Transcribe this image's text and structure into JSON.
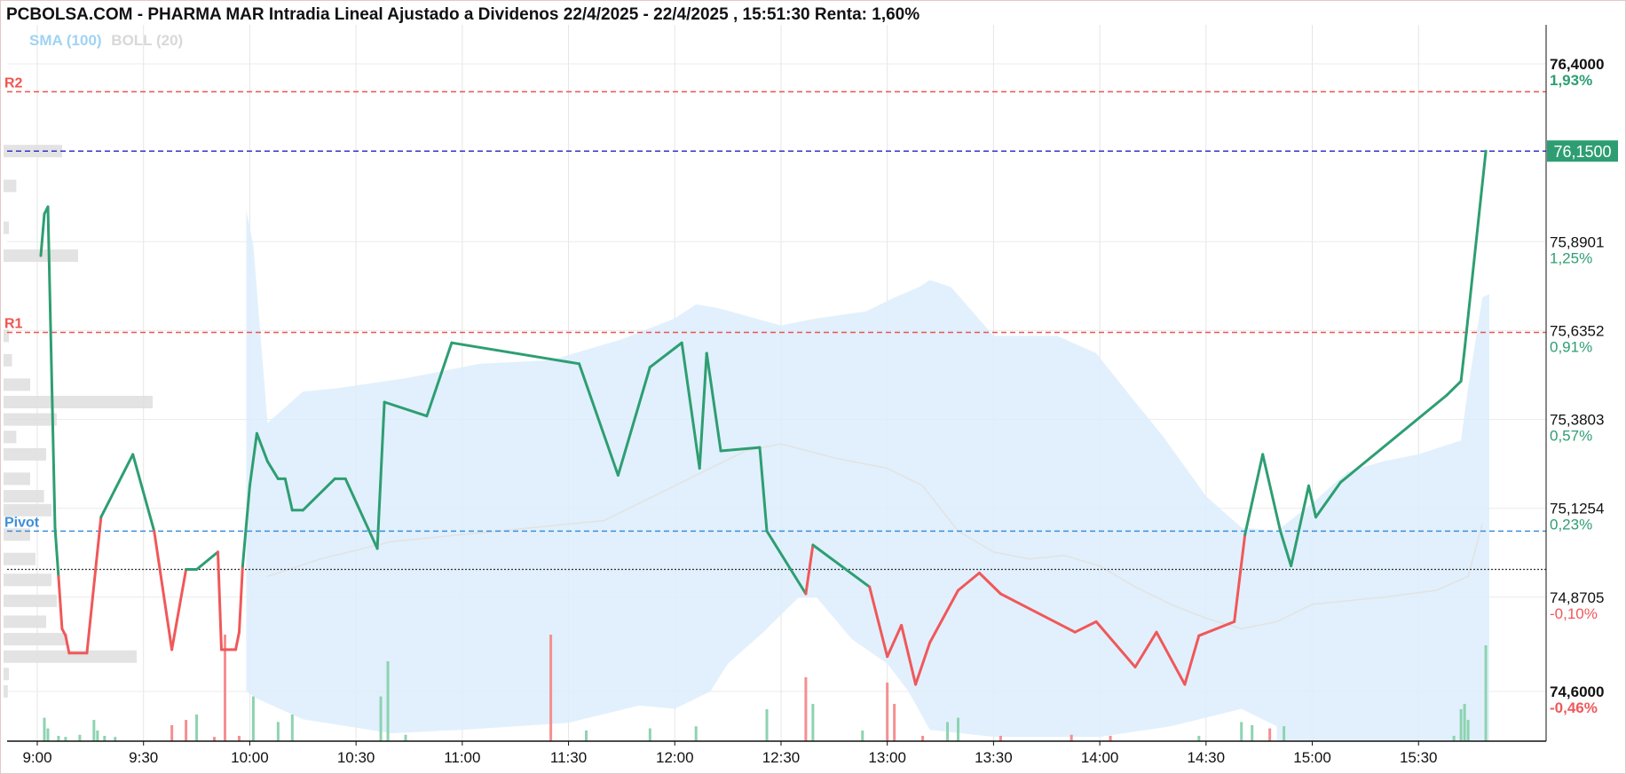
{
  "title": "PCBOLSA.COM - PHARMA MAR Intradia Lineal Ajustado a Dividenos 22/4/2025 - 22/4/2025 , 15:51:30 Renta: 1,60%",
  "indicators": {
    "sma": "SMA (100)",
    "boll": "BOLL (20)"
  },
  "colors": {
    "up": "#2e9e72",
    "down": "#f0585a",
    "band": "#dcedfb",
    "resistance": "#ef5350",
    "pivot": "#3d8fd8",
    "current": "#3434c8",
    "prev_close": "#333333",
    "last_price_bg": "#2e9e72"
  },
  "chart_data": {
    "type": "line",
    "title": "PCBOLSA.COM - PHARMA MAR Intradia Lineal Ajustado a Dividenos 22/4/2025 - 22/4/2025 , 15:51:30 Renta: 1,60%",
    "x_ticks": [
      "9:00",
      "9:30",
      "10:00",
      "10:30",
      "11:00",
      "11:30",
      "12:00",
      "12:30",
      "13:00",
      "13:30",
      "14:00",
      "14:30",
      "15:00",
      "15:30"
    ],
    "y_ticks": [
      {
        "price": "76,4000",
        "pct": "1,93%",
        "pct_color": "#2e9e72"
      },
      {
        "price": "75,8901",
        "pct": "1,25%",
        "pct_color": "#2e9e72"
      },
      {
        "price": "75,6352",
        "pct": "0,91%",
        "pct_color": "#2e9e72"
      },
      {
        "price": "75,3803",
        "pct": "0,57%",
        "pct_color": "#2e9e72"
      },
      {
        "price": "75,1254",
        "pct": "0,23%",
        "pct_color": "#2e9e72"
      },
      {
        "price": "74,8705",
        "pct": "-0,10%",
        "pct_color": "#f0585a"
      },
      {
        "price": "74,6000",
        "pct": "-0,46%",
        "pct_color": "#f0585a"
      }
    ],
    "ylim": [
      74.6,
      76.4
    ],
    "reference_close": 74.95,
    "last_price": "76,1500",
    "levels": [
      {
        "name": "R2",
        "value": 76.32,
        "color": "#ef5350"
      },
      {
        "name": "R1",
        "value": 75.63,
        "color": "#ef5350"
      },
      {
        "name": "Pivot",
        "value": 75.06,
        "color": "#3d8fd8"
      }
    ],
    "current_line": 76.15,
    "price_series": [
      [
        "9:01",
        75.85
      ],
      [
        "9:02",
        75.97
      ],
      [
        "9:03",
        75.99
      ],
      [
        "9:05",
        75.07
      ],
      [
        "9:06",
        74.93
      ],
      [
        "9:07",
        74.78
      ],
      [
        "9:08",
        74.76
      ],
      [
        "9:09",
        74.71
      ],
      [
        "9:14",
        74.71
      ],
      [
        "9:18",
        75.1
      ],
      [
        "9:27",
        75.28
      ],
      [
        "9:33",
        75.06
      ],
      [
        "9:38",
        74.72
      ],
      [
        "9:42",
        74.95
      ],
      [
        "9:45",
        74.95
      ],
      [
        "9:51",
        75.0
      ],
      [
        "9:52",
        74.72
      ],
      [
        "9:56",
        74.72
      ],
      [
        "9:57",
        74.77
      ],
      [
        "9:58",
        74.96
      ],
      [
        "10:00",
        75.19
      ],
      [
        "10:02",
        75.34
      ],
      [
        "10:05",
        75.26
      ],
      [
        "10:08",
        75.21
      ],
      [
        "10:10",
        75.21
      ],
      [
        "10:12",
        75.12
      ],
      [
        "10:15",
        75.12
      ],
      [
        "10:24",
        75.21
      ],
      [
        "10:27",
        75.21
      ],
      [
        "10:36",
        75.01
      ],
      [
        "10:38",
        75.43
      ],
      [
        "10:50",
        75.39
      ],
      [
        "10:57",
        75.6
      ],
      [
        "11:33",
        75.54
      ],
      [
        "11:44",
        75.22
      ],
      [
        "11:53",
        75.53
      ],
      [
        "12:02",
        75.6
      ],
      [
        "12:07",
        75.24
      ],
      [
        "12:09",
        75.57
      ],
      [
        "12:13",
        75.29
      ],
      [
        "12:24",
        75.3
      ],
      [
        "12:26",
        75.06
      ],
      [
        "12:37",
        74.88
      ],
      [
        "12:39",
        75.02
      ],
      [
        "12:55",
        74.9
      ],
      [
        "13:00",
        74.7
      ],
      [
        "13:04",
        74.79
      ],
      [
        "13:08",
        74.62
      ],
      [
        "13:12",
        74.74
      ],
      [
        "13:20",
        74.89
      ],
      [
        "13:26",
        74.94
      ],
      [
        "13:32",
        74.88
      ],
      [
        "13:53",
        74.77
      ],
      [
        "13:59",
        74.8
      ],
      [
        "14:10",
        74.67
      ],
      [
        "14:16",
        74.77
      ],
      [
        "14:24",
        74.62
      ],
      [
        "14:28",
        74.76
      ],
      [
        "14:38",
        74.8
      ],
      [
        "14:41",
        75.05
      ],
      [
        "14:46",
        75.28
      ],
      [
        "14:51",
        75.06
      ],
      [
        "14:54",
        74.96
      ],
      [
        "14:59",
        75.19
      ],
      [
        "15:01",
        75.1
      ],
      [
        "15:08",
        75.2
      ],
      [
        "15:38",
        75.45
      ],
      [
        "15:42",
        75.49
      ],
      [
        "15:43",
        75.58
      ],
      [
        "15:49",
        76.15
      ]
    ],
    "boll_upper": [
      [
        "9:59",
        75.98
      ],
      [
        "10:01",
        75.88
      ],
      [
        "10:05",
        75.37
      ],
      [
        "10:15",
        75.46
      ],
      [
        "10:25",
        75.47
      ],
      [
        "10:45",
        75.5
      ],
      [
        "11:05",
        75.54
      ],
      [
        "11:25",
        75.55
      ],
      [
        "11:45",
        75.61
      ],
      [
        "12:00",
        75.67
      ],
      [
        "12:06",
        75.71
      ],
      [
        "12:12",
        75.7
      ],
      [
        "12:30",
        75.65
      ],
      [
        "12:40",
        75.67
      ],
      [
        "12:54",
        75.69
      ],
      [
        "13:02",
        75.73
      ],
      [
        "13:09",
        75.76
      ],
      [
        "13:12",
        75.78
      ],
      [
        "13:18",
        75.76
      ],
      [
        "13:24",
        75.69
      ],
      [
        "13:30",
        75.62
      ],
      [
        "13:48",
        75.62
      ],
      [
        "13:59",
        75.57
      ],
      [
        "14:10",
        75.43
      ],
      [
        "14:18",
        75.33
      ],
      [
        "14:30",
        75.16
      ],
      [
        "14:40",
        75.07
      ],
      [
        "14:50",
        75.06
      ],
      [
        "15:00",
        75.14
      ],
      [
        "15:10",
        75.23
      ],
      [
        "15:20",
        75.26
      ],
      [
        "15:30",
        75.28
      ],
      [
        "15:42",
        75.32
      ],
      [
        "15:44",
        75.47
      ],
      [
        "15:48",
        75.73
      ],
      [
        "15:50",
        75.74
      ]
    ],
    "boll_lower": [
      [
        "9:59",
        74.6
      ],
      [
        "10:02",
        74.58
      ],
      [
        "10:15",
        74.52
      ],
      [
        "10:40",
        74.48
      ],
      [
        "11:00",
        74.49
      ],
      [
        "11:30",
        74.51
      ],
      [
        "11:50",
        74.56
      ],
      [
        "12:00",
        74.55
      ],
      [
        "12:10",
        74.6
      ],
      [
        "12:15",
        74.68
      ],
      [
        "12:25",
        74.77
      ],
      [
        "12:35",
        74.87
      ],
      [
        "12:40",
        74.87
      ],
      [
        "12:50",
        74.75
      ],
      [
        "13:00",
        74.68
      ],
      [
        "13:06",
        74.6
      ],
      [
        "13:12",
        74.49
      ],
      [
        "13:30",
        74.47
      ],
      [
        "14:00",
        74.47
      ],
      [
        "14:20",
        74.5
      ],
      [
        "14:40",
        74.55
      ],
      [
        "14:50",
        74.5
      ]
    ],
    "sma_series": [
      [
        "10:05",
        74.93
      ],
      [
        "10:20",
        74.98
      ],
      [
        "10:40",
        75.03
      ],
      [
        "11:00",
        75.05
      ],
      [
        "11:20",
        75.07
      ],
      [
        "11:40",
        75.09
      ],
      [
        "11:50",
        75.14
      ],
      [
        "12:00",
        75.19
      ],
      [
        "12:10",
        75.24
      ],
      [
        "12:20",
        75.29
      ],
      [
        "12:30",
        75.31
      ],
      [
        "12:45",
        75.27
      ],
      [
        "13:00",
        75.24
      ],
      [
        "13:10",
        75.19
      ],
      [
        "13:20",
        75.06
      ],
      [
        "13:30",
        75.0
      ],
      [
        "13:40",
        74.98
      ],
      [
        "13:50",
        74.99
      ],
      [
        "14:00",
        74.96
      ],
      [
        "14:10",
        74.9
      ],
      [
        "14:20",
        74.85
      ],
      [
        "14:30",
        74.81
      ],
      [
        "14:40",
        74.78
      ],
      [
        "14:50",
        74.8
      ],
      [
        "15:00",
        74.85
      ],
      [
        "15:20",
        74.87
      ],
      [
        "15:35",
        74.89
      ],
      [
        "15:44",
        74.93
      ],
      [
        "15:48",
        75.08
      ]
    ],
    "volume_bars": [
      [
        "9:02",
        0.22,
        "up"
      ],
      [
        "9:03",
        0.12,
        "up"
      ],
      [
        "9:06",
        0.05,
        "up"
      ],
      [
        "9:08",
        0.04,
        "up"
      ],
      [
        "9:12",
        0.06,
        "up"
      ],
      [
        "9:16",
        0.2,
        "up"
      ],
      [
        "9:17",
        0.1,
        "up"
      ],
      [
        "9:19",
        0.05,
        "up"
      ],
      [
        "9:22",
        0.04,
        "up"
      ],
      [
        "9:38",
        0.15,
        "down"
      ],
      [
        "9:42",
        0.2,
        "down"
      ],
      [
        "9:45",
        0.25,
        "up"
      ],
      [
        "9:50",
        0.04,
        "down"
      ],
      [
        "9:53",
        1.0,
        "down"
      ],
      [
        "9:57",
        0.05,
        "down"
      ],
      [
        "10:01",
        0.42,
        "up"
      ],
      [
        "10:08",
        0.18,
        "up"
      ],
      [
        "10:12",
        0.25,
        "up"
      ],
      [
        "10:37",
        0.42,
        "up"
      ],
      [
        "10:39",
        0.75,
        "up"
      ],
      [
        "10:44",
        0.06,
        "up"
      ],
      [
        "11:25",
        1.0,
        "down"
      ],
      [
        "11:35",
        0.1,
        "up"
      ],
      [
        "11:53",
        0.12,
        "up"
      ],
      [
        "12:06",
        0.14,
        "up"
      ],
      [
        "12:26",
        0.3,
        "up"
      ],
      [
        "12:37",
        0.6,
        "down"
      ],
      [
        "12:39",
        0.35,
        "up"
      ],
      [
        "12:53",
        0.1,
        "up"
      ],
      [
        "13:00",
        0.55,
        "down"
      ],
      [
        "13:02",
        0.35,
        "down"
      ],
      [
        "13:10",
        0.05,
        "down"
      ],
      [
        "13:17",
        0.18,
        "up"
      ],
      [
        "13:20",
        0.22,
        "up"
      ],
      [
        "13:32",
        0.05,
        "down"
      ],
      [
        "13:52",
        0.06,
        "down"
      ],
      [
        "14:03",
        0.05,
        "down"
      ],
      [
        "14:28",
        0.05,
        "up"
      ],
      [
        "14:40",
        0.18,
        "up"
      ],
      [
        "14:43",
        0.15,
        "up"
      ],
      [
        "14:48",
        0.12,
        "down"
      ],
      [
        "14:52",
        0.14,
        "up"
      ],
      [
        "15:40",
        0.05,
        "up"
      ],
      [
        "15:42",
        0.3,
        "up"
      ],
      [
        "15:43",
        0.35,
        "up"
      ],
      [
        "15:44",
        0.2,
        "up"
      ],
      [
        "15:49",
        0.9,
        "up"
      ]
    ],
    "price_volume_profile": [
      {
        "price": 76.15,
        "w": 0.55
      },
      {
        "price": 76.05,
        "w": 0.12
      },
      {
        "price": 75.93,
        "w": 0.05
      },
      {
        "price": 75.85,
        "w": 0.7
      },
      {
        "price": 75.62,
        "w": 0.05
      },
      {
        "price": 75.55,
        "w": 0.08
      },
      {
        "price": 75.48,
        "w": 0.25
      },
      {
        "price": 75.43,
        "w": 1.4
      },
      {
        "price": 75.38,
        "w": 0.5
      },
      {
        "price": 75.33,
        "w": 0.12
      },
      {
        "price": 75.28,
        "w": 0.4
      },
      {
        "price": 75.21,
        "w": 0.25
      },
      {
        "price": 75.16,
        "w": 0.38
      },
      {
        "price": 75.12,
        "w": 0.45
      },
      {
        "price": 75.05,
        "w": 0.25
      },
      {
        "price": 74.98,
        "w": 0.3
      },
      {
        "price": 74.92,
        "w": 0.45
      },
      {
        "price": 74.86,
        "w": 0.5
      },
      {
        "price": 74.8,
        "w": 0.4
      },
      {
        "price": 74.75,
        "w": 0.6
      },
      {
        "price": 74.7,
        "w": 1.25
      },
      {
        "price": 74.65,
        "w": 0.05
      },
      {
        "price": 74.6,
        "w": 0.04
      }
    ]
  }
}
